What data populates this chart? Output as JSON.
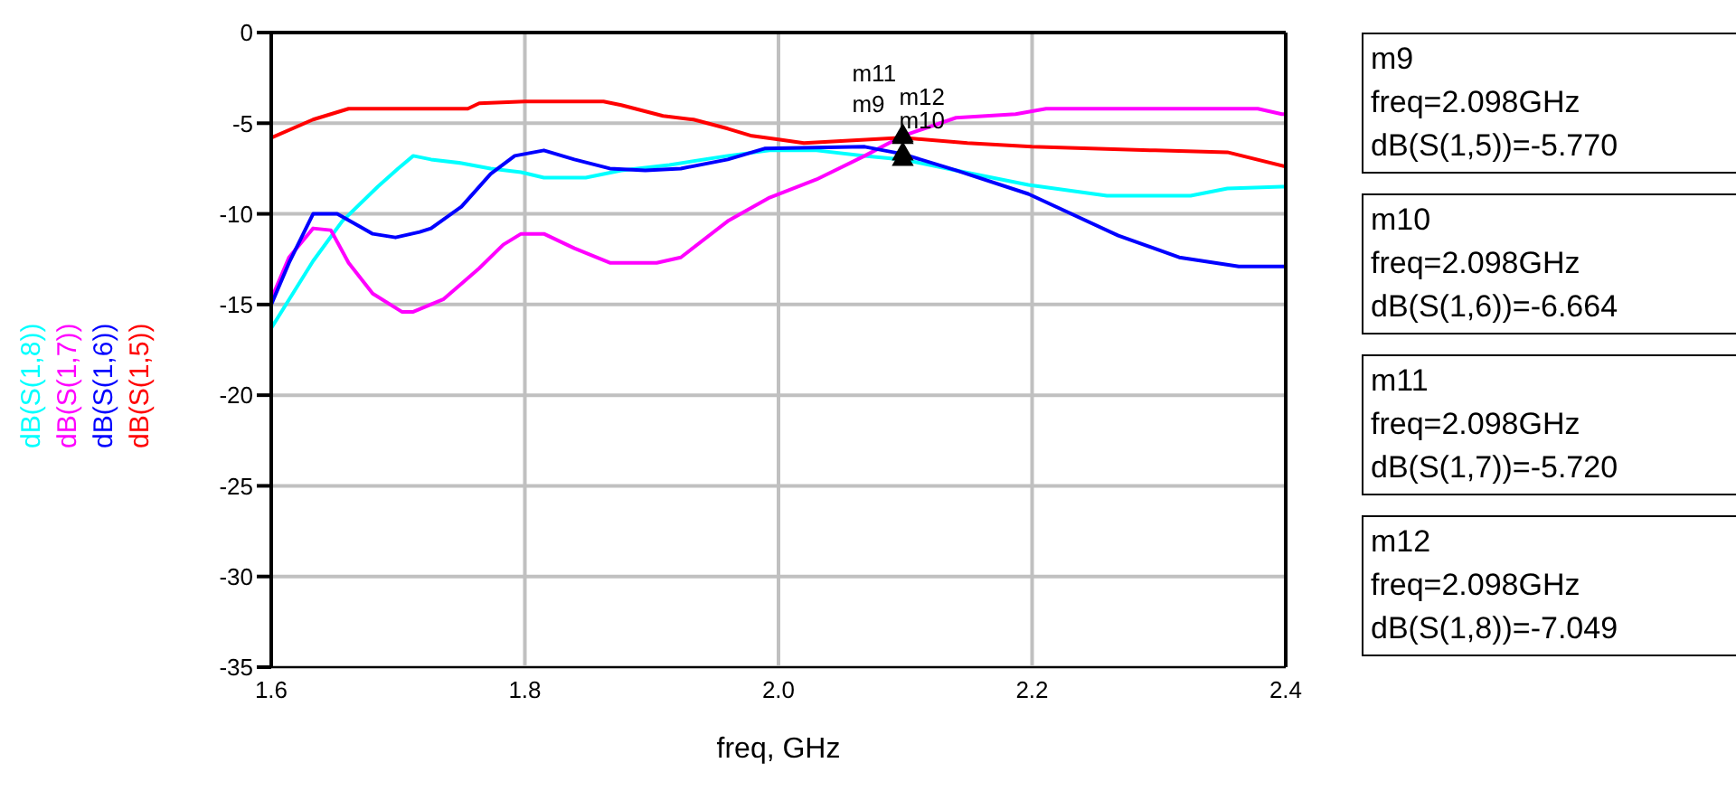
{
  "chart_data": {
    "type": "line",
    "xlabel": "freq, GHz",
    "xlim": [
      1.6,
      2.4
    ],
    "xticks": [
      {
        "value": 1.6,
        "label": "1.6"
      },
      {
        "value": 1.8,
        "label": "1.8"
      },
      {
        "value": 2,
        "label": "2.0"
      },
      {
        "value": 2.2,
        "label": "2.2"
      },
      {
        "value": 2.4,
        "label": "2.4"
      }
    ],
    "ylim": [
      -35,
      0
    ],
    "yticks": [
      0,
      -5,
      -10,
      -15,
      -20,
      -25,
      -30,
      -35
    ],
    "grid": true,
    "legend": "left",
    "marker": "none",
    "line_style": "solid",
    "series": [
      {
        "type": "scatter",
        "color": "#000000",
        "marker": "triangle",
        "x": [
          2.098,
          2.098,
          2.098,
          2.098
        ],
        "values": [
          -5.8,
          -6.7,
          -5.7,
          -7.0
        ],
        "value_labels": [
          "m9",
          "m10",
          "m11",
          "m12"
        ]
      },
      {
        "name": "dB(S(1,8))",
        "color": "#00ffff",
        "x": [
          1.6,
          1.633,
          1.656,
          1.684,
          1.7,
          1.712,
          1.726,
          1.75,
          1.773,
          1.797,
          1.815,
          1.848,
          1.876,
          1.914,
          1.96,
          1.993,
          2.03,
          2.068,
          2.098,
          2.14,
          2.197,
          2.259,
          2.325,
          2.354,
          2.397,
          2.4
        ],
        "values": [
          -16.3,
          -12.6,
          -10.4,
          -8.5,
          -7.5,
          -6.8,
          -7.0,
          -7.2,
          -7.5,
          -7.7,
          -8.0,
          -8.0,
          -7.6,
          -7.3,
          -6.8,
          -6.5,
          -6.5,
          -6.8,
          -7.0,
          -7.6,
          -8.4,
          -9.0,
          -9.0,
          -8.6,
          -8.5,
          -8.5
        ]
      },
      {
        "name": "dB(S(1,7))",
        "color": "#ff00ff",
        "x": [
          1.6,
          1.614,
          1.633,
          1.647,
          1.661,
          1.68,
          1.703,
          1.712,
          1.736,
          1.764,
          1.783,
          1.797,
          1.815,
          1.839,
          1.867,
          1.904,
          1.923,
          1.96,
          1.993,
          2.03,
          2.068,
          2.098,
          2.14,
          2.187,
          2.211,
          2.378,
          2.397,
          2.4
        ],
        "values": [
          -14.7,
          -12.4,
          -10.8,
          -10.9,
          -12.7,
          -14.4,
          -15.4,
          -15.4,
          -14.7,
          -13.0,
          -11.7,
          -11.1,
          -11.1,
          -11.9,
          -12.7,
          -12.7,
          -12.4,
          -10.4,
          -9.1,
          -8.1,
          -6.8,
          -5.7,
          -4.7,
          -4.5,
          -4.2,
          -4.2,
          -4.5,
          -4.5
        ]
      },
      {
        "name": "dB(S(1,6))",
        "color": "#0000ff",
        "x": [
          1.6,
          1.614,
          1.633,
          1.652,
          1.68,
          1.698,
          1.717,
          1.726,
          1.75,
          1.773,
          1.792,
          1.815,
          1.839,
          1.867,
          1.895,
          1.923,
          1.96,
          1.989,
          2.068,
          2.098,
          2.14,
          2.197,
          2.268,
          2.316,
          2.363,
          2.4
        ],
        "values": [
          -15.0,
          -12.7,
          -10.0,
          -10.0,
          -11.1,
          -11.3,
          -11.0,
          -10.8,
          -9.6,
          -7.8,
          -6.8,
          -6.5,
          -7.0,
          -7.5,
          -7.6,
          -7.5,
          -7.0,
          -6.4,
          -6.3,
          -6.7,
          -7.6,
          -8.9,
          -11.2,
          -12.4,
          -12.9,
          -12.9
        ]
      },
      {
        "name": "dB(S(1,5))",
        "color": "#ff0000",
        "x": [
          1.6,
          1.633,
          1.661,
          1.755,
          1.764,
          1.8,
          1.862,
          1.876,
          1.909,
          1.933,
          1.96,
          1.979,
          2.0,
          2.02,
          2.098,
          2.149,
          2.2,
          2.297,
          2.354,
          2.4
        ],
        "values": [
          -5.8,
          -4.8,
          -4.2,
          -4.2,
          -3.9,
          -3.8,
          -3.8,
          -4.0,
          -4.6,
          -4.8,
          -5.3,
          -5.7,
          -5.9,
          -6.1,
          -5.8,
          -6.1,
          -6.3,
          -6.5,
          -6.6,
          -7.4
        ]
      }
    ],
    "annotations": [
      "m9\nfreq=2.098GHz\ndB(S(1,5))=-5.770",
      "m10\nfreq=2.098GHz\ndB(S(1,6))=-6.664",
      "m11\nfreq=2.098GHz\ndB(S(1,7))=-5.720",
      "m12\nfreq=2.098GHz\ndB(S(1,8))=-7.049"
    ]
  }
}
